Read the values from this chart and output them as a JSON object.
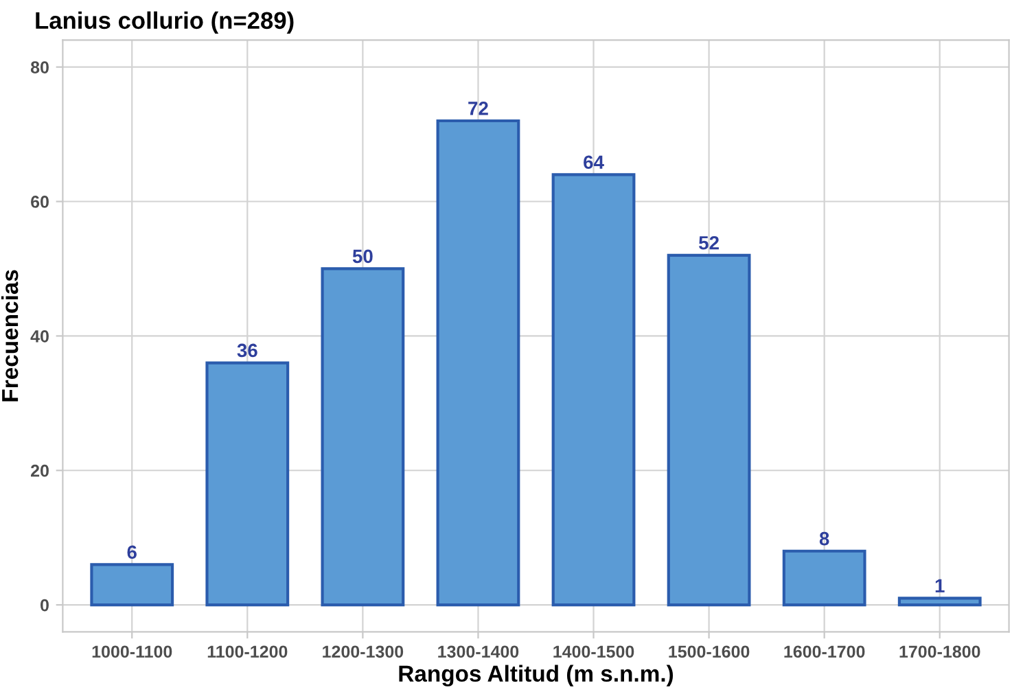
{
  "chart_data": {
    "type": "bar",
    "title": "Lanius collurio (n=289)",
    "xlabel": "Rangos Altitud (m s.n.m.)",
    "ylabel": "Frecuencias",
    "categories": [
      "1000-1100",
      "1100-1200",
      "1200-1300",
      "1300-1400",
      "1400-1500",
      "1500-1600",
      "1600-1700",
      "1700-1800"
    ],
    "values": [
      6,
      36,
      50,
      72,
      64,
      52,
      8,
      1
    ],
    "color": "#5b9bd5",
    "ylim": [
      -4,
      84
    ],
    "yticks": [
      0,
      20,
      40,
      60,
      80
    ],
    "grid": true,
    "data_labels": true
  }
}
